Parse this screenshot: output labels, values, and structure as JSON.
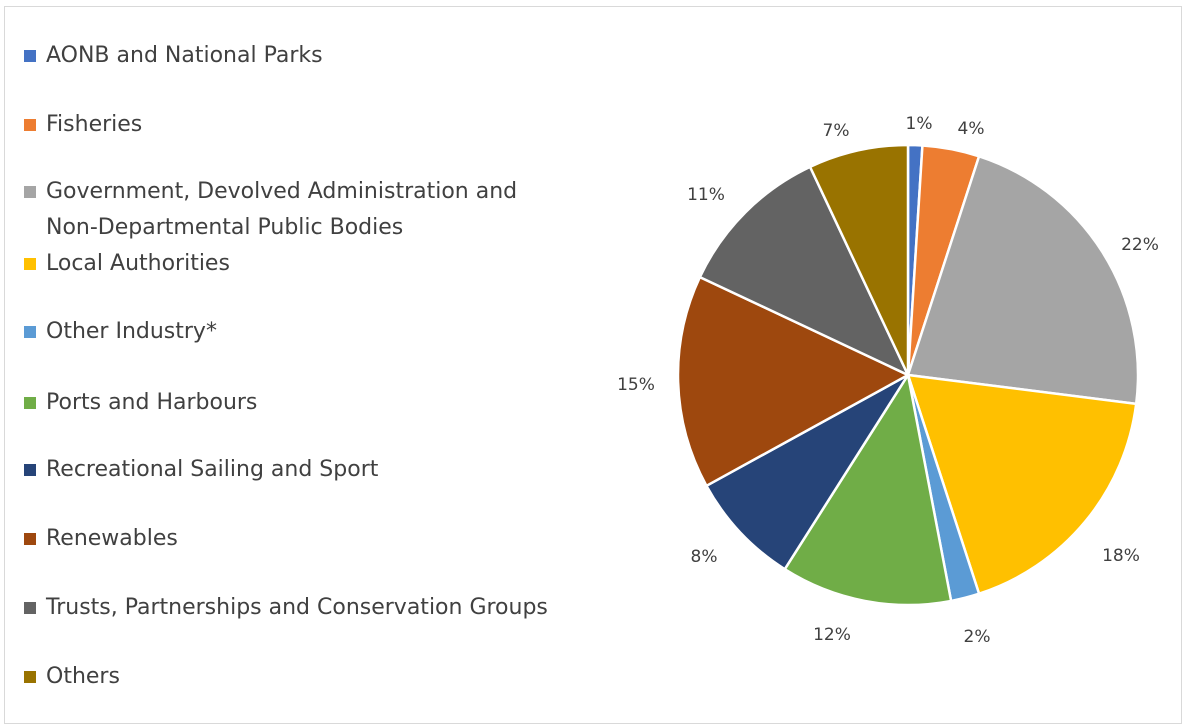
{
  "chart_data": {
    "type": "pie",
    "title": "",
    "legend_position": "left",
    "slices": [
      {
        "label": "AONB and National Parks",
        "value": 1,
        "display": "1%",
        "color": "#4472C4"
      },
      {
        "label": "Fisheries",
        "value": 4,
        "display": "4%",
        "color": "#ED7D31"
      },
      {
        "label": "Government, Devolved Administration and\nNon-Departmental Public Bodies",
        "value": 22,
        "display": "22%",
        "color": "#A5A5A5"
      },
      {
        "label": "Local Authorities",
        "value": 18,
        "display": "18%",
        "color": "#FFC000"
      },
      {
        "label": "Other Industry*",
        "value": 2,
        "display": "2%",
        "color": "#5B9BD5"
      },
      {
        "label": "Ports and Harbours",
        "value": 12,
        "display": "12%",
        "color": "#70AD47"
      },
      {
        "label": "Recreational Sailing and Sport",
        "value": 8,
        "display": "8%",
        "color": "#264478"
      },
      {
        "label": "Renewables",
        "value": 15,
        "display": "15%",
        "color": "#9E480E"
      },
      {
        "label": "Trusts, Partnerships and Conservation Groups",
        "value": 11,
        "display": "11%",
        "color": "#636363"
      },
      {
        "label": "Others",
        "value": 7,
        "display": "7%",
        "color": "#997300"
      }
    ]
  }
}
